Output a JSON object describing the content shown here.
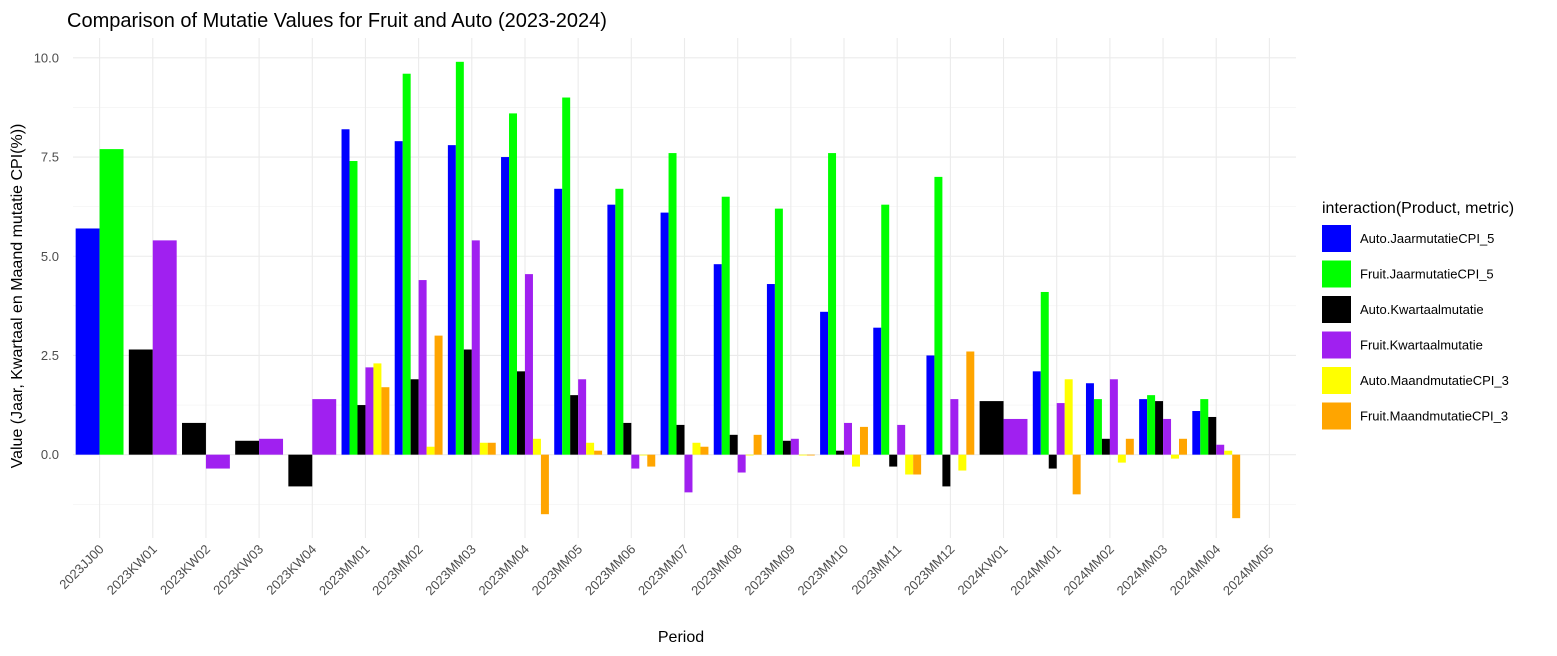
{
  "chart_data": {
    "type": "bar",
    "title": "Comparison of Mutatie Values for Fruit and Auto (2023-2024)",
    "xlabel": "Period",
    "ylabel": "Value (Jaar, Kwartaal en Maand mutatie CPI(%))",
    "ylim": [
      -2.1,
      10.5
    ],
    "yticks": [
      0.0,
      2.5,
      5.0,
      7.5,
      10.0
    ],
    "ytick_labels": [
      "0.0",
      "2.5",
      "5.0",
      "7.5",
      "10.0"
    ],
    "grid": true,
    "legend_position": "right",
    "legend_title": "interaction(Product, metric)",
    "categories": [
      "2023JJ00",
      "2023KW01",
      "2023KW02",
      "2023KW03",
      "2023KW04",
      "2023MM01",
      "2023MM02",
      "2023MM03",
      "2023MM04",
      "2023MM05",
      "2023MM06",
      "2023MM07",
      "2023MM08",
      "2023MM09",
      "2023MM10",
      "2023MM11",
      "2023MM12",
      "2024KW01",
      "2024MM01",
      "2024MM02",
      "2024MM03",
      "2024MM04",
      "2024MM05"
    ],
    "series": [
      {
        "name": "Auto.JaarmutatieCPI_5",
        "color": "#0000FF",
        "values": [
          5.7,
          null,
          null,
          null,
          null,
          8.2,
          7.9,
          7.8,
          7.5,
          6.7,
          6.3,
          6.1,
          4.8,
          4.3,
          3.6,
          3.2,
          2.5,
          null,
          2.1,
          1.8,
          1.4,
          1.1,
          null
        ]
      },
      {
        "name": "Fruit.JaarmutatieCPI_5",
        "color": "#00FF00",
        "values": [
          7.7,
          null,
          null,
          null,
          null,
          7.4,
          9.6,
          9.9,
          8.6,
          9.0,
          6.7,
          7.6,
          6.5,
          6.2,
          7.6,
          6.3,
          7.0,
          null,
          4.1,
          1.4,
          1.5,
          1.4,
          null
        ]
      },
      {
        "name": "Auto.Kwartaalmutatie",
        "color": "#000000",
        "values": [
          null,
          2.65,
          0.8,
          0.35,
          -0.8,
          1.25,
          1.9,
          2.65,
          2.1,
          1.5,
          0.8,
          0.75,
          0.5,
          0.35,
          0.1,
          -0.3,
          -0.8,
          1.35,
          -0.35,
          0.4,
          1.35,
          0.95,
          null
        ]
      },
      {
        "name": "Fruit.Kwartaalmutatie",
        "color": "#A020F0",
        "values": [
          null,
          5.4,
          -0.35,
          0.4,
          1.4,
          2.2,
          4.4,
          5.4,
          4.55,
          1.9,
          -0.35,
          -0.95,
          -0.45,
          0.4,
          0.8,
          0.75,
          1.4,
          0.9,
          1.3,
          1.9,
          0.9,
          0.25,
          null
        ]
      },
      {
        "name": "Auto.MaandmutatieCPI_3",
        "color": "#FFFF00",
        "values": [
          null,
          null,
          null,
          null,
          null,
          2.3,
          0.2,
          0.3,
          0.4,
          0.3,
          0.0,
          0.3,
          0.0,
          0.0,
          -0.3,
          -0.5,
          -0.4,
          null,
          1.9,
          -0.2,
          -0.1,
          0.1,
          null
        ]
      },
      {
        "name": "Fruit.MaandmutatieCPI_3",
        "color": "#FFA500",
        "values": [
          null,
          null,
          null,
          null,
          null,
          1.7,
          3.0,
          0.3,
          -1.5,
          0.1,
          -0.3,
          0.2,
          0.5,
          0.0,
          0.7,
          -0.5,
          2.6,
          null,
          -1.0,
          0.4,
          0.4,
          -1.6,
          null
        ]
      }
    ]
  }
}
